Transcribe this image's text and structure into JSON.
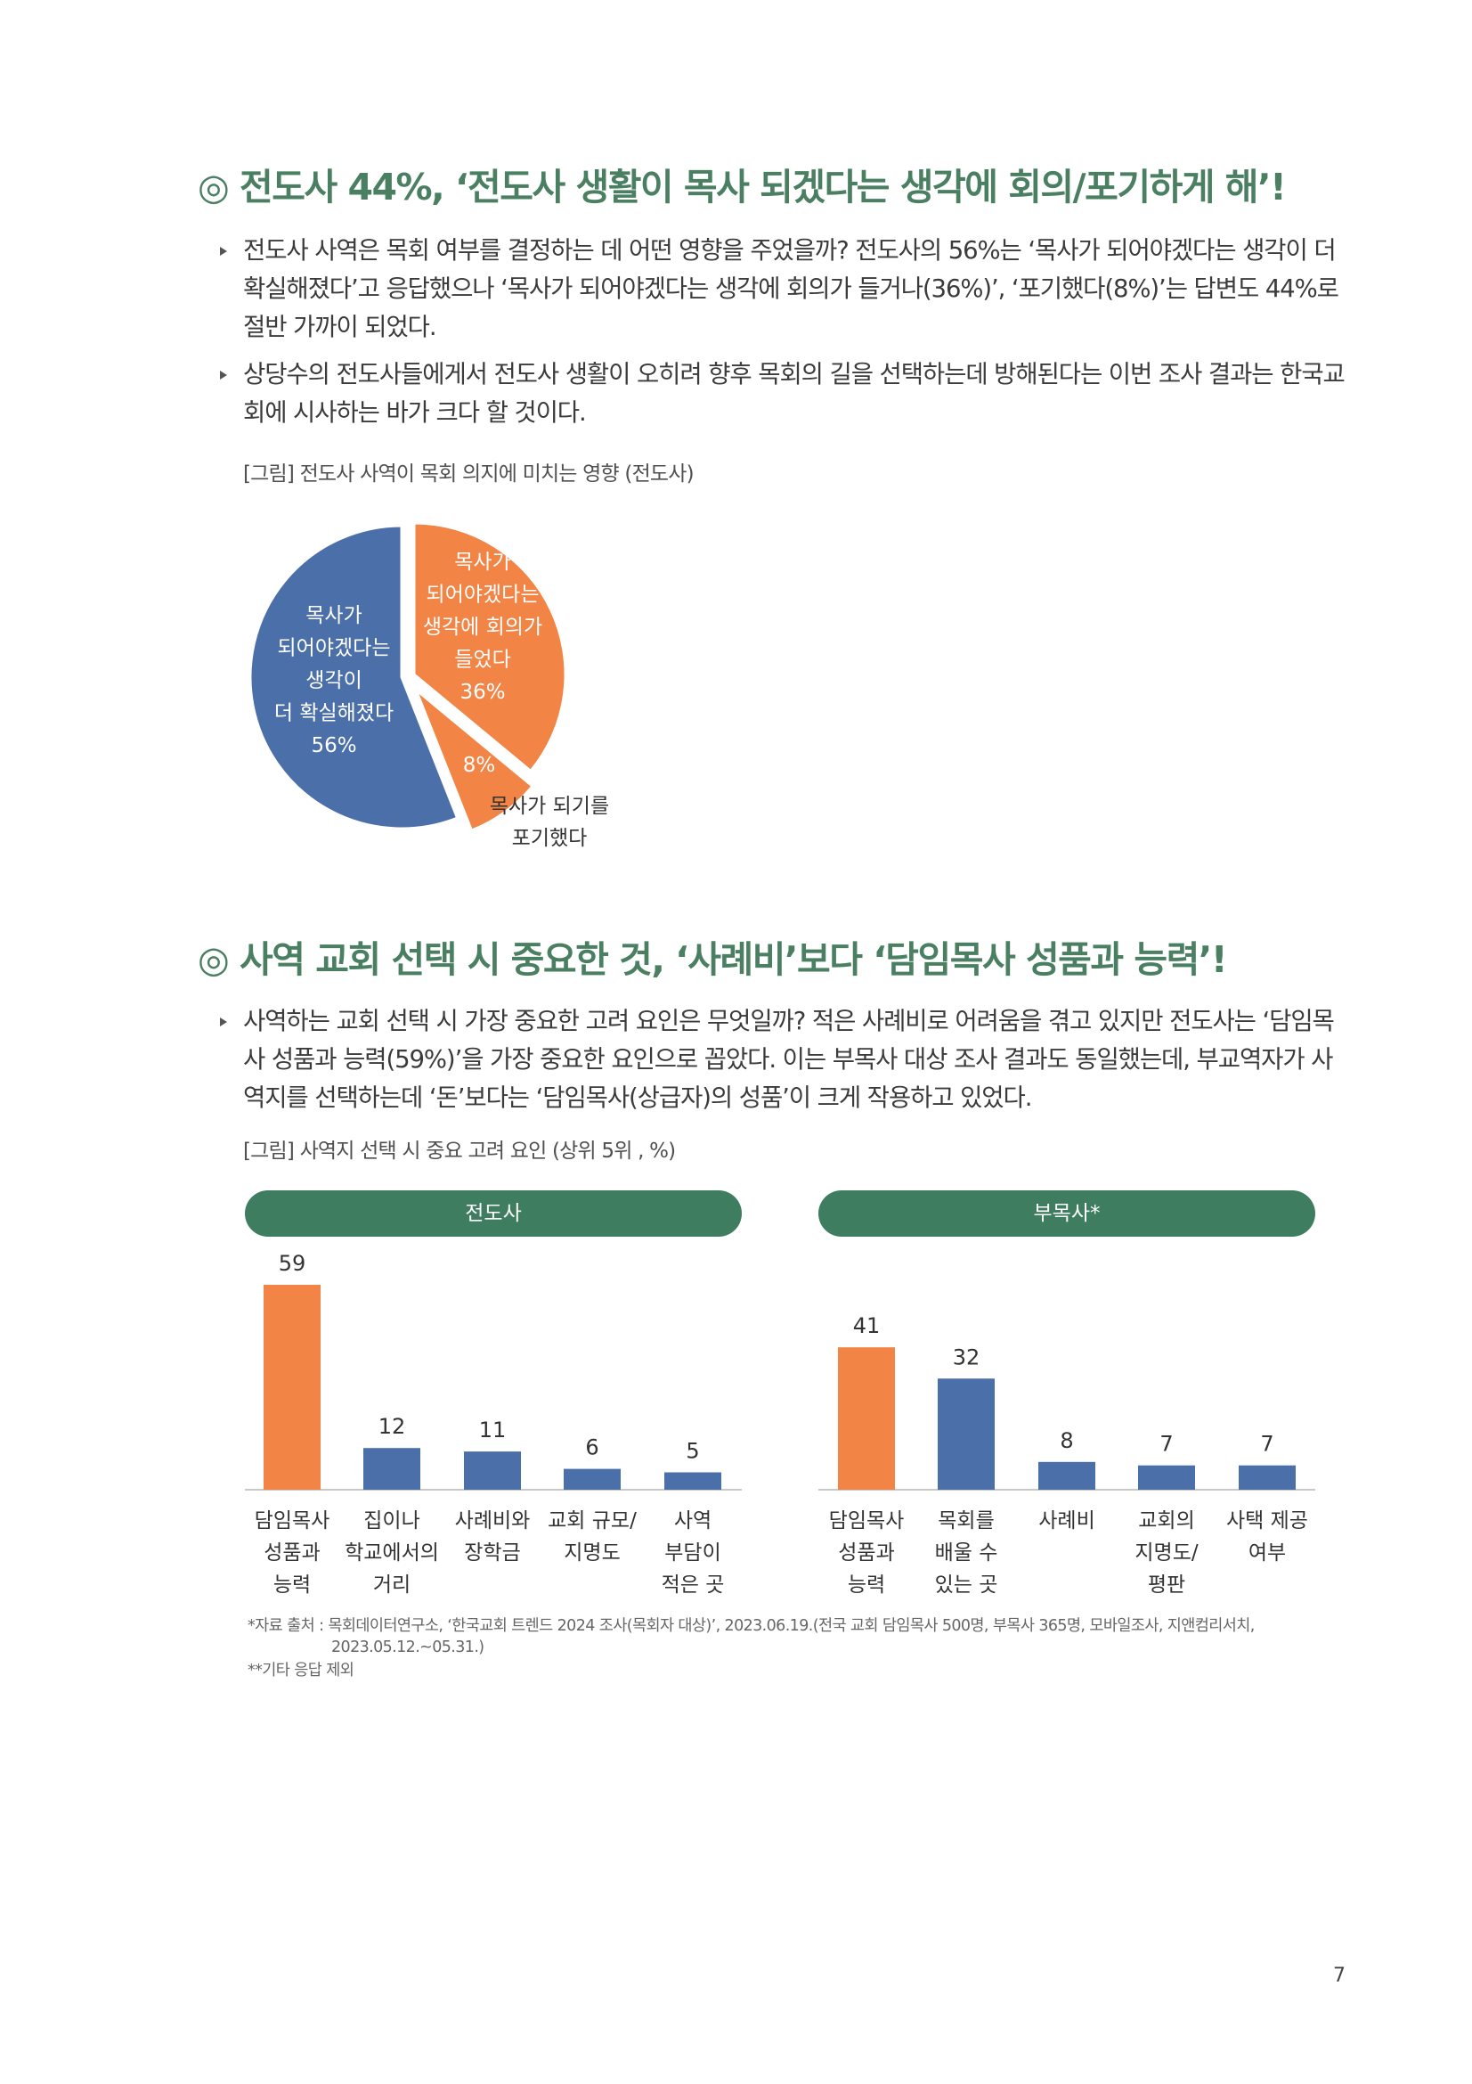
{
  "section1": {
    "heading": "◎ 전도사 44%, ‘전도사 생활이 목사 되겠다는 생각에 회의/포기하게 해’!",
    "bullets": [
      "전도사 사역은 목회 여부를 결정하는 데 어떤 영향을 주었을까? 전도사의 56%는 ‘목사가 되어야겠다는 생각이 더 확실해졌다’고 응답했으나 ‘목사가 되어야겠다는 생각에 회의가 들거나(36%)’, ‘포기했다(8%)’는 답변도 44%로 절반 가까이 되었다.",
      "상당수의 전도사들에게서 전도사 생활이 오히려 향후 목회의 길을 선택하는데 방해된다는 이번 조사 결과는 한국교회에 시사하는 바가 크다 할 것이다."
    ],
    "caption": "[그림] 전도사 사역이 목회 의지에 미치는 영향 (전도사)"
  },
  "section2": {
    "heading": "◎ 사역 교회 선택 시 중요한 것, ‘사례비’보다 ‘담임목사 성품과 능력’!",
    "bullets": [
      "사역하는 교회 선택 시 가장 중요한 고려 요인은 무엇일까? 적은 사례비로 어려움을 겪고 있지만 전도사는 ‘담임목사 성품과 능력(59%)’을 가장 중요한 요인으로 꼽았다. 이는 부목사 대상 조사 결과도 동일했는데, 부교역자가 사역지를 선택하는데 ‘돈’보다는 ‘담임목사(상급자)의 성품’이 크게 작용하고 있었다."
    ],
    "caption": "[그림] 사역지 선택 시 중요 고려 요인 (상위 5위 , %)"
  },
  "footnotes": [
    "*자료 출처 : 목회데이터연구소, ‘한국교회 트렌드 2024 조사(목회자 대상)’, 2023.06.19.(전국 교회 담임목사 500명, 부목사 365명, 모바일조사, 지앤컴리서치,",
    "2023.05.12.~05.31.)",
    "**기타 응답 제외"
  ],
  "page_number": "7",
  "colors": {
    "heading": "#4a7f62",
    "pill": "#3e7d5f",
    "orange": "#f28445",
    "blue": "#4b6fa9"
  },
  "chart_data": [
    {
      "type": "pie",
      "slices": [
        {
          "label": [
            "목사가",
            "되어야겠다는",
            "생각이",
            "더 확실해졌다"
          ],
          "value": 56,
          "value_label": "56%",
          "color": "#4b6fa9"
        },
        {
          "label": [
            "목사가",
            "되어야겠다는",
            "생각에 회의가",
            "들었다"
          ],
          "value": 36,
          "value_label": "36%",
          "color": "#f28445"
        },
        {
          "label": [
            "목사가 되기를",
            "포기했다"
          ],
          "value": 8,
          "value_label": "8%",
          "color": "#f28445"
        }
      ]
    },
    {
      "type": "bar",
      "title": "전도사",
      "categories": [
        [
          "담임목사",
          "성품과",
          "능력"
        ],
        [
          "집이나",
          "학교에서의",
          "거리"
        ],
        [
          "사례비와",
          "장학금"
        ],
        [
          "교회 규모/",
          "지명도"
        ],
        [
          "사역",
          "부담이",
          "적은 곳"
        ]
      ],
      "values": [
        59,
        12,
        11,
        6,
        5
      ],
      "colors": [
        "#f28445",
        "#4b6fa9",
        "#4b6fa9",
        "#4b6fa9",
        "#4b6fa9"
      ],
      "ylim": [
        0,
        59
      ]
    },
    {
      "type": "bar",
      "title": "부목사*",
      "categories": [
        [
          "담임목사",
          "성품과",
          "능력"
        ],
        [
          "목회를",
          "배울 수",
          "있는 곳"
        ],
        [
          "사례비"
        ],
        [
          "교회의",
          "지명도/",
          "평판"
        ],
        [
          "사택 제공",
          "여부"
        ]
      ],
      "values": [
        41,
        32,
        8,
        7,
        7
      ],
      "colors": [
        "#f28445",
        "#4b6fa9",
        "#4b6fa9",
        "#4b6fa9",
        "#4b6fa9"
      ],
      "ylim": [
        0,
        59
      ]
    }
  ]
}
